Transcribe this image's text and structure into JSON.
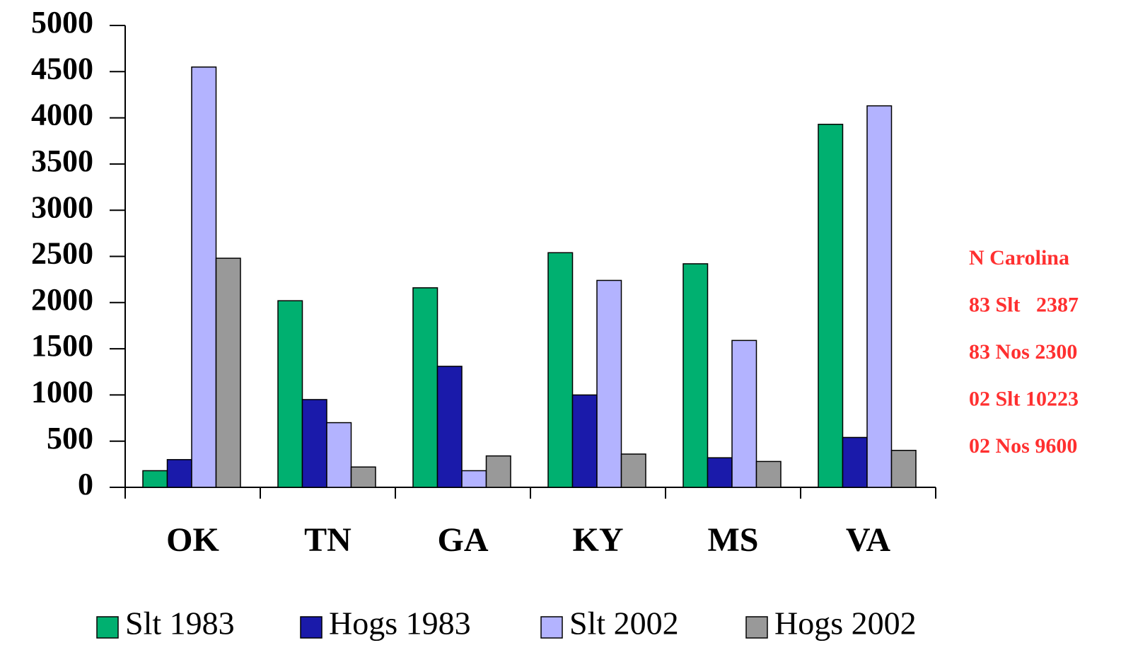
{
  "chart_data": {
    "type": "bar",
    "categories": [
      "OK",
      "TN",
      "GA",
      "KY",
      "MS",
      "VA"
    ],
    "series": [
      {
        "name": "Slt 1983",
        "color": "#00b070",
        "values": [
          180,
          2020,
          2160,
          2540,
          2420,
          3930
        ]
      },
      {
        "name": "Hogs 1983",
        "color": "#1a1aaa",
        "values": [
          300,
          950,
          1310,
          1000,
          320,
          540
        ]
      },
      {
        "name": "Slt 2002",
        "color": "#b3b3ff",
        "values": [
          4550,
          700,
          180,
          2240,
          1590,
          4130
        ]
      },
      {
        "name": "Hogs 2002",
        "color": "#999999",
        "values": [
          2480,
          220,
          340,
          360,
          280,
          400
        ]
      }
    ],
    "ylim": [
      0,
      5000
    ],
    "yticks": [
      0,
      500,
      1000,
      1500,
      2000,
      2500,
      3000,
      3500,
      4000,
      4500,
      5000
    ],
    "annotations": [
      "N Carolina",
      "83 Slt   2387",
      "83 Nos 2300",
      "02 Slt 10223",
      "02 Nos 9600"
    ],
    "legend": "bottom"
  }
}
